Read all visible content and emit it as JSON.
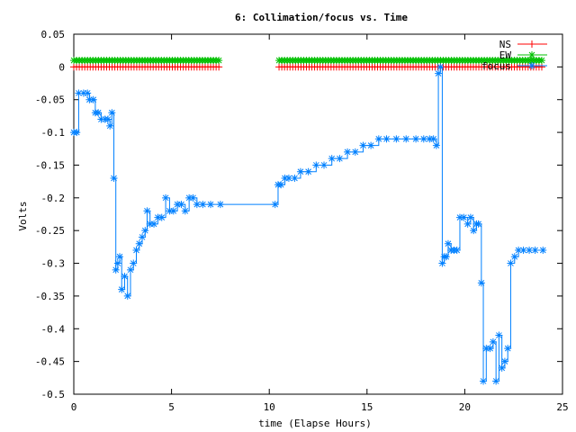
{
  "chart_data": {
    "type": "line",
    "title": "6: Collimation/focus vs. Time",
    "xlabel": "time (Elapse Hours)",
    "ylabel": "Volts",
    "xlim": [
      0,
      25
    ],
    "ylim": [
      -0.5,
      0.05
    ],
    "xticks": [
      "0",
      "5",
      "10",
      "15",
      "20",
      "25"
    ],
    "xtick_values": [
      0,
      5,
      10,
      15,
      20,
      25
    ],
    "yticks": [
      "0.05",
      "0",
      "-0.05",
      "-0.1",
      "-0.15",
      "-0.2",
      "-0.25",
      "-0.3",
      "-0.35",
      "-0.4",
      "-0.45",
      "-0.5"
    ],
    "ytick_values": [
      0.05,
      0,
      -0.05,
      -0.1,
      -0.15,
      -0.2,
      -0.25,
      -0.3,
      -0.35,
      -0.4,
      -0.45,
      -0.5
    ],
    "grid": false,
    "legend_position": "top-right",
    "series": [
      {
        "name": "NS",
        "color": "#ff0000",
        "marker": "plus",
        "segments": [
          {
            "x_start": 0.0,
            "x_end": 7.5,
            "y": 0.0
          },
          {
            "x_start": 10.5,
            "x_end": 24.0,
            "y": 0.0
          }
        ]
      },
      {
        "name": "EW",
        "color": "#00c000",
        "marker": "star",
        "segments": [
          {
            "x_start": 0.0,
            "x_end": 7.5,
            "y": 0.01
          },
          {
            "x_start": 10.5,
            "x_end": 24.0,
            "y": 0.01
          }
        ]
      },
      {
        "name": "focus",
        "color": "#0080ff",
        "marker": "star",
        "points": [
          [
            0.0,
            -0.1
          ],
          [
            0.15,
            -0.1
          ],
          [
            0.25,
            -0.04
          ],
          [
            0.5,
            -0.04
          ],
          [
            0.7,
            -0.04
          ],
          [
            0.8,
            -0.05
          ],
          [
            1.0,
            -0.05
          ],
          [
            1.1,
            -0.07
          ],
          [
            1.25,
            -0.07
          ],
          [
            1.4,
            -0.08
          ],
          [
            1.6,
            -0.08
          ],
          [
            1.75,
            -0.08
          ],
          [
            1.85,
            -0.09
          ],
          [
            1.95,
            -0.07
          ],
          [
            2.05,
            -0.17
          ],
          [
            2.15,
            -0.31
          ],
          [
            2.25,
            -0.3
          ],
          [
            2.35,
            -0.29
          ],
          [
            2.45,
            -0.34
          ],
          [
            2.6,
            -0.32
          ],
          [
            2.75,
            -0.35
          ],
          [
            2.9,
            -0.31
          ],
          [
            3.05,
            -0.3
          ],
          [
            3.2,
            -0.28
          ],
          [
            3.35,
            -0.27
          ],
          [
            3.5,
            -0.26
          ],
          [
            3.65,
            -0.25
          ],
          [
            3.75,
            -0.22
          ],
          [
            3.9,
            -0.24
          ],
          [
            4.1,
            -0.24
          ],
          [
            4.3,
            -0.23
          ],
          [
            4.5,
            -0.23
          ],
          [
            4.7,
            -0.2
          ],
          [
            4.9,
            -0.22
          ],
          [
            5.1,
            -0.22
          ],
          [
            5.3,
            -0.21
          ],
          [
            5.5,
            -0.21
          ],
          [
            5.7,
            -0.22
          ],
          [
            5.9,
            -0.2
          ],
          [
            6.1,
            -0.2
          ],
          [
            6.3,
            -0.21
          ],
          [
            6.6,
            -0.21
          ],
          [
            7.0,
            -0.21
          ],
          [
            7.5,
            -0.21
          ],
          [
            10.3,
            -0.21
          ],
          [
            10.45,
            -0.18
          ],
          [
            10.6,
            -0.18
          ],
          [
            10.8,
            -0.17
          ],
          [
            11.0,
            -0.17
          ],
          [
            11.3,
            -0.17
          ],
          [
            11.6,
            -0.16
          ],
          [
            12.0,
            -0.16
          ],
          [
            12.4,
            -0.15
          ],
          [
            12.8,
            -0.15
          ],
          [
            13.2,
            -0.14
          ],
          [
            13.6,
            -0.14
          ],
          [
            14.0,
            -0.13
          ],
          [
            14.4,
            -0.13
          ],
          [
            14.8,
            -0.12
          ],
          [
            15.2,
            -0.12
          ],
          [
            15.6,
            -0.11
          ],
          [
            16.0,
            -0.11
          ],
          [
            16.5,
            -0.11
          ],
          [
            17.0,
            -0.11
          ],
          [
            17.5,
            -0.11
          ],
          [
            17.9,
            -0.11
          ],
          [
            18.2,
            -0.11
          ],
          [
            18.4,
            -0.11
          ],
          [
            18.55,
            -0.12
          ],
          [
            18.65,
            -0.01
          ],
          [
            18.75,
            0.0
          ],
          [
            18.85,
            -0.3
          ],
          [
            18.95,
            -0.29
          ],
          [
            19.05,
            -0.29
          ],
          [
            19.15,
            -0.27
          ],
          [
            19.3,
            -0.28
          ],
          [
            19.45,
            -0.28
          ],
          [
            19.6,
            -0.28
          ],
          [
            19.75,
            -0.23
          ],
          [
            19.95,
            -0.23
          ],
          [
            20.15,
            -0.24
          ],
          [
            20.3,
            -0.23
          ],
          [
            20.45,
            -0.25
          ],
          [
            20.6,
            -0.24
          ],
          [
            20.7,
            -0.24
          ],
          [
            20.85,
            -0.33
          ],
          [
            20.95,
            -0.48
          ],
          [
            21.1,
            -0.43
          ],
          [
            21.3,
            -0.43
          ],
          [
            21.45,
            -0.42
          ],
          [
            21.6,
            -0.48
          ],
          [
            21.75,
            -0.41
          ],
          [
            21.9,
            -0.46
          ],
          [
            22.05,
            -0.45
          ],
          [
            22.2,
            -0.43
          ],
          [
            22.35,
            -0.3
          ],
          [
            22.55,
            -0.29
          ],
          [
            22.75,
            -0.28
          ],
          [
            23.0,
            -0.28
          ],
          [
            23.3,
            -0.28
          ],
          [
            23.6,
            -0.28
          ],
          [
            24.0,
            -0.28
          ]
        ]
      }
    ]
  }
}
